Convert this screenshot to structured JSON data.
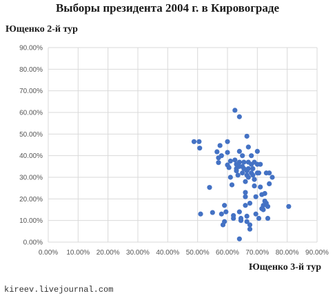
{
  "chart_data": {
    "type": "scatter",
    "title": "Выборы президента 2004 г. в Кировограде",
    "ylabel": "Ющенко 2-й тур",
    "xlabel": "Ющенко 3-й тур",
    "xlim": [
      0,
      0.9
    ],
    "ylim": [
      0,
      0.9
    ],
    "x_ticks": [
      "0.00%",
      "10.00%",
      "20.00%",
      "30.00%",
      "40.00%",
      "50.00%",
      "60.00%",
      "70.00%",
      "80.00%",
      "90.00%"
    ],
    "y_ticks": [
      "0.00%",
      "10.00%",
      "20.00%",
      "30.00%",
      "40.00%",
      "50.00%",
      "60.00%",
      "70.00%",
      "80.00%",
      "90.00%"
    ],
    "grid": true,
    "marker_color": "#4472c4",
    "points": [
      [
        0.488,
        0.465
      ],
      [
        0.505,
        0.465
      ],
      [
        0.507,
        0.435
      ],
      [
        0.54,
        0.253
      ],
      [
        0.51,
        0.13
      ],
      [
        0.55,
        0.137
      ],
      [
        0.565,
        0.418
      ],
      [
        0.57,
        0.39
      ],
      [
        0.57,
        0.368
      ],
      [
        0.575,
        0.447
      ],
      [
        0.58,
        0.4
      ],
      [
        0.58,
        0.13
      ],
      [
        0.585,
        0.08
      ],
      [
        0.59,
        0.095
      ],
      [
        0.59,
        0.17
      ],
      [
        0.595,
        0.14
      ],
      [
        0.6,
        0.465
      ],
      [
        0.6,
        0.415
      ],
      [
        0.6,
        0.357
      ],
      [
        0.605,
        0.345
      ],
      [
        0.61,
        0.375
      ],
      [
        0.61,
        0.3
      ],
      [
        0.615,
        0.265
      ],
      [
        0.62,
        0.123
      ],
      [
        0.62,
        0.11
      ],
      [
        0.625,
        0.61
      ],
      [
        0.625,
        0.38
      ],
      [
        0.63,
        0.36
      ],
      [
        0.63,
        0.34
      ],
      [
        0.63,
        0.33
      ],
      [
        0.635,
        0.36
      ],
      [
        0.635,
        0.31
      ],
      [
        0.64,
        0.58
      ],
      [
        0.64,
        0.42
      ],
      [
        0.64,
        0.37
      ],
      [
        0.64,
        0.35
      ],
      [
        0.64,
        0.14
      ],
      [
        0.645,
        0.11
      ],
      [
        0.645,
        0.1
      ],
      [
        0.64,
        0.015
      ],
      [
        0.65,
        0.4
      ],
      [
        0.65,
        0.35
      ],
      [
        0.65,
        0.32
      ],
      [
        0.655,
        0.37
      ],
      [
        0.655,
        0.34
      ],
      [
        0.66,
        0.28
      ],
      [
        0.66,
        0.23
      ],
      [
        0.66,
        0.21
      ],
      [
        0.66,
        0.17
      ],
      [
        0.665,
        0.49
      ],
      [
        0.665,
        0.33
      ],
      [
        0.665,
        0.31
      ],
      [
        0.665,
        0.12
      ],
      [
        0.665,
        0.095
      ],
      [
        0.67,
        0.44
      ],
      [
        0.67,
        0.37
      ],
      [
        0.67,
        0.34
      ],
      [
        0.67,
        0.3
      ],
      [
        0.675,
        0.18
      ],
      [
        0.675,
        0.08
      ],
      [
        0.675,
        0.06
      ],
      [
        0.68,
        0.4
      ],
      [
        0.68,
        0.36
      ],
      [
        0.68,
        0.32
      ],
      [
        0.685,
        0.34
      ],
      [
        0.685,
        0.31
      ],
      [
        0.69,
        0.37
      ],
      [
        0.69,
        0.29
      ],
      [
        0.69,
        0.26
      ],
      [
        0.695,
        0.21
      ],
      [
        0.695,
        0.13
      ],
      [
        0.7,
        0.42
      ],
      [
        0.7,
        0.36
      ],
      [
        0.7,
        0.32
      ],
      [
        0.705,
        0.32
      ],
      [
        0.705,
        0.11
      ],
      [
        0.71,
        0.36
      ],
      [
        0.71,
        0.255
      ],
      [
        0.715,
        0.22
      ],
      [
        0.715,
        0.155
      ],
      [
        0.72,
        0.15
      ],
      [
        0.72,
        0.17
      ],
      [
        0.725,
        0.225
      ],
      [
        0.725,
        0.19
      ],
      [
        0.73,
        0.32
      ],
      [
        0.73,
        0.18
      ],
      [
        0.735,
        0.165
      ],
      [
        0.735,
        0.11
      ],
      [
        0.74,
        0.32
      ],
      [
        0.74,
        0.27
      ],
      [
        0.75,
        0.3
      ],
      [
        0.805,
        0.165
      ]
    ]
  },
  "footer": {
    "source": "kireev.livejournal.com"
  }
}
